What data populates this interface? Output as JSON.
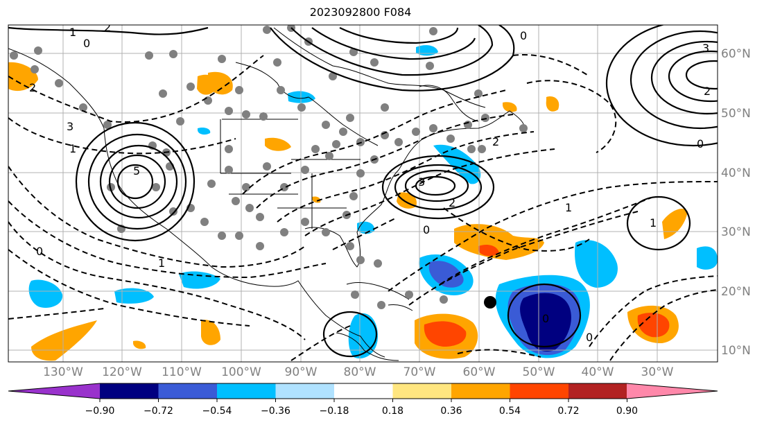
{
  "title": "2023092800 F084",
  "lon_labels": [
    "130°W",
    "120°W",
    "110°W",
    "100°W",
    "90°W",
    "80°W",
    "70°W",
    "60°W",
    "50°W",
    "40°W",
    "30°W"
  ],
  "lat_labels": [
    "60°N",
    "50°N",
    "40°N",
    "30°N",
    "20°N",
    "10°N"
  ],
  "colorbar": {
    "tick_labels": [
      "−0.90",
      "−0.72",
      "−0.54",
      "−0.36",
      "−0.18",
      "0.18",
      "0.36",
      "0.54",
      "0.72",
      "0.90"
    ],
    "colors": [
      "#9932cc",
      "#000080",
      "#3a5bd6",
      "#00bfff",
      "#b0e2ff",
      "#ffffff",
      "#ffe680",
      "#ffa500",
      "#ff4500",
      "#b22222",
      "#ff88aa"
    ]
  },
  "contour_labels": [
    "1",
    "2",
    "0",
    "3",
    "5",
    "1",
    "0",
    "2",
    "3",
    "2",
    "1",
    "2",
    "0",
    "1",
    "0",
    "0",
    "1",
    "2",
    "0",
    "0",
    "3"
  ],
  "storm_marker": "storm-center-dot"
}
